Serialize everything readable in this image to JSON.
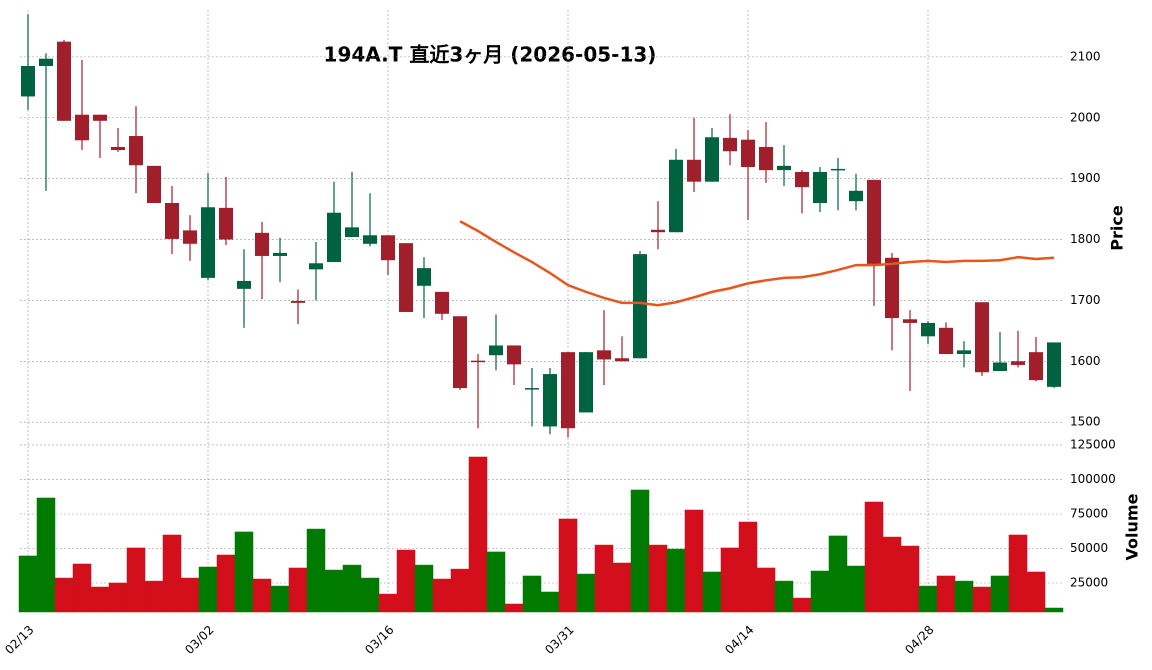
{
  "chart_data": {
    "type": "candlestick",
    "title": "194A.T  直近3ヶ月  (2026-05-13)",
    "categories": [
      "02/13",
      null,
      null,
      null,
      null,
      null,
      null,
      null,
      null,
      null,
      "03/02",
      null,
      null,
      null,
      null,
      null,
      null,
      null,
      null,
      null,
      "03/16",
      null,
      null,
      null,
      null,
      null,
      null,
      null,
      null,
      null,
      "03/31",
      null,
      null,
      null,
      null,
      null,
      null,
      null,
      null,
      null,
      "04/14",
      null,
      null,
      null,
      null,
      null,
      null,
      null,
      null,
      null,
      "04/28",
      null,
      null,
      null,
      null,
      null,
      null,
      null
    ],
    "open": [
      2035,
      2085,
      2125,
      2005,
      2005,
      1952,
      1970,
      1921,
      1860,
      1815,
      1737,
      1852,
      1719,
      1811,
      1773,
      1699,
      1751,
      1763,
      1804,
      1793,
      1807,
      1794,
      1724,
      1714,
      1674,
      1601,
      1610,
      1626,
      1554,
      1493,
      1615,
      1516,
      1618,
      1605,
      1605,
      1816,
      1812,
      1931,
      1895,
      1967,
      1964,
      1952,
      1914,
      1911,
      1860,
      1914,
      1863,
      1898,
      1770,
      1669,
      1641,
      1655,
      1612,
      1697,
      1584,
      1600,
      1615,
      1558
    ],
    "high": [
      2170,
      2106,
      2128,
      2095,
      2005,
      1983,
      2019,
      1921,
      1888,
      1840,
      1909,
      1903,
      1784,
      1829,
      1803,
      1718,
      1796,
      1895,
      1911,
      1876,
      1807,
      1794,
      1771,
      1714,
      1674,
      1612,
      1677,
      1626,
      1589,
      1589,
      1615,
      1615,
      1684,
      1641,
      1781,
      1863,
      1949,
      2000,
      1983,
      2006,
      1980,
      1993,
      1955,
      1914,
      1919,
      1934,
      1908,
      1898,
      1778,
      1684,
      1666,
      1664,
      1633,
      1697,
      1648,
      1650,
      1640,
      1631
    ],
    "low": [
      2013,
      1880,
      1995,
      1947,
      1934,
      1944,
      1876,
      1860,
      1776,
      1765,
      1733,
      1791,
      1655,
      1702,
      1730,
      1661,
      1700,
      1763,
      1804,
      1789,
      1742,
      1681,
      1671,
      1668,
      1553,
      1490,
      1585,
      1561,
      1493,
      1480,
      1475,
      1516,
      1561,
      1600,
      1605,
      1784,
      1812,
      1878,
      1895,
      1922,
      1832,
      1893,
      1888,
      1843,
      1845,
      1848,
      1848,
      1691,
      1618,
      1551,
      1628,
      1612,
      1590,
      1576,
      1584,
      1590,
      1567,
      1556
    ],
    "close": [
      2085,
      2097,
      1995,
      1963,
      1995,
      1947,
      1922,
      1860,
      1801,
      1793,
      1853,
      1800,
      1732,
      1773,
      1778,
      1696,
      1761,
      1844,
      1820,
      1807,
      1766,
      1681,
      1753,
      1678,
      1556,
      1600,
      1626,
      1595,
      1556,
      1579,
      1490,
      1615,
      1603,
      1600,
      1776,
      1812,
      1931,
      1895,
      1968,
      1945,
      1919,
      1914,
      1921,
      1886,
      1911,
      1916,
      1880,
      1760,
      1671,
      1663,
      1663,
      1612,
      1618,
      1582,
      1598,
      1594,
      1569,
      1631
    ],
    "up_color": "#006340",
    "down_color": "#a01f2a",
    "ma": {
      "color": "#e8561d",
      "values": [
        null,
        null,
        null,
        null,
        null,
        null,
        null,
        null,
        null,
        null,
        null,
        null,
        null,
        null,
        null,
        null,
        null,
        null,
        null,
        null,
        null,
        null,
        null,
        null,
        1830,
        1814,
        1796,
        1779,
        1763,
        1745,
        1725,
        1714,
        1704,
        1696,
        1696,
        1692,
        1697,
        1705,
        1714,
        1720,
        1728,
        1733,
        1737,
        1738,
        1743,
        1750,
        1758,
        1758,
        1760,
        1763,
        1765,
        1763,
        1765,
        1765,
        1766,
        1771,
        1768,
        1770
      ]
    },
    "ylabel": "Price",
    "ylim": [
      1474,
      2177
    ],
    "yticks": [
      1500,
      1600,
      1700,
      1800,
      1900,
      2000,
      2100
    ],
    "volume": {
      "ylabel": "Volume",
      "values": [
        44600,
        86600,
        28600,
        38800,
        22100,
        25000,
        50400,
        26400,
        59800,
        28600,
        36600,
        45300,
        62000,
        27900,
        22800,
        35900,
        64100,
        34400,
        38000,
        28600,
        17000,
        48900,
        38000,
        27900,
        35100,
        116300,
        47500,
        9800,
        30100,
        18500,
        71400,
        31500,
        52500,
        39500,
        92400,
        52500,
        49600,
        77900,
        33000,
        50400,
        69200,
        35900,
        26400,
        14100,
        33700,
        59100,
        37300,
        83700,
        58300,
        51800,
        22800,
        30100,
        26400,
        22100,
        30100,
        59800,
        33000,
        6900
      ],
      "up_color": "#007a00",
      "down_color": "#d20f1a",
      "ylim": [
        4000,
        128600
      ],
      "yticks": [
        25000,
        50000,
        75000,
        100000,
        125000
      ]
    },
    "grid": true
  }
}
